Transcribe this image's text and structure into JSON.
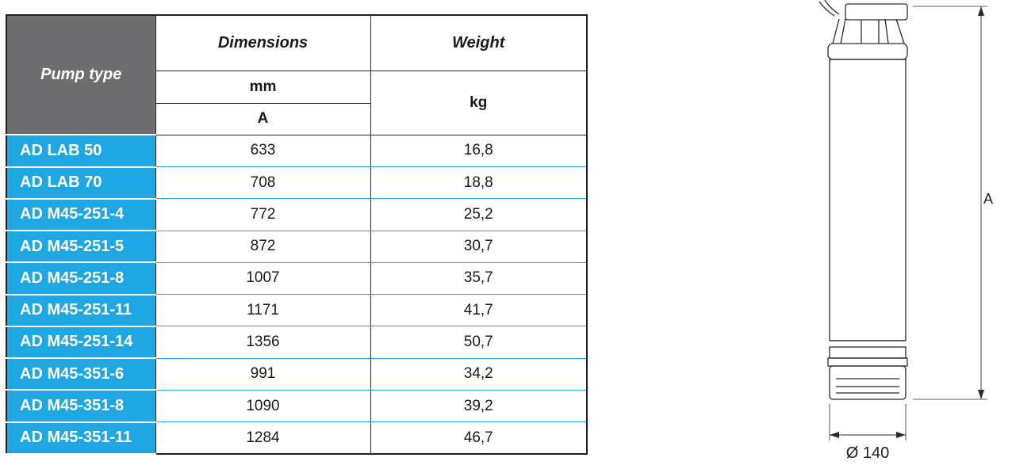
{
  "table": {
    "header": {
      "pump_type": "Pump type",
      "dimensions": "Dimensions",
      "weight": "Weight",
      "dim_unit": "mm",
      "dim_symbol": "A",
      "weight_unit": "kg"
    },
    "rows": [
      {
        "type": "AD LAB 50",
        "a": "633",
        "kg": "16,8"
      },
      {
        "type": "AD LAB 70",
        "a": "708",
        "kg": "18,8"
      },
      {
        "type": "AD M45-251-4",
        "a": "772",
        "kg": "25,2"
      },
      {
        "type": "AD M45-251-5",
        "a": "872",
        "kg": "30,7"
      },
      {
        "type": "AD M45-251-8",
        "a": "1007",
        "kg": "35,7"
      },
      {
        "type": "AD M45-251-11",
        "a": "1171",
        "kg": "41,7"
      },
      {
        "type": "AD M45-251-14",
        "a": "1356",
        "kg": "50,7"
      },
      {
        "type": "AD M45-351-6",
        "a": "991",
        "kg": "34,2"
      },
      {
        "type": "AD M45-351-8",
        "a": "1090",
        "kg": "39,2"
      },
      {
        "type": "AD M45-351-11",
        "a": "1284",
        "kg": "46,7"
      }
    ]
  },
  "drawing": {
    "height_label": "A",
    "diameter_label": "Ø 140"
  },
  "colors": {
    "accent_blue": "#1ea7e2",
    "header_gray": "#6e6e70"
  }
}
